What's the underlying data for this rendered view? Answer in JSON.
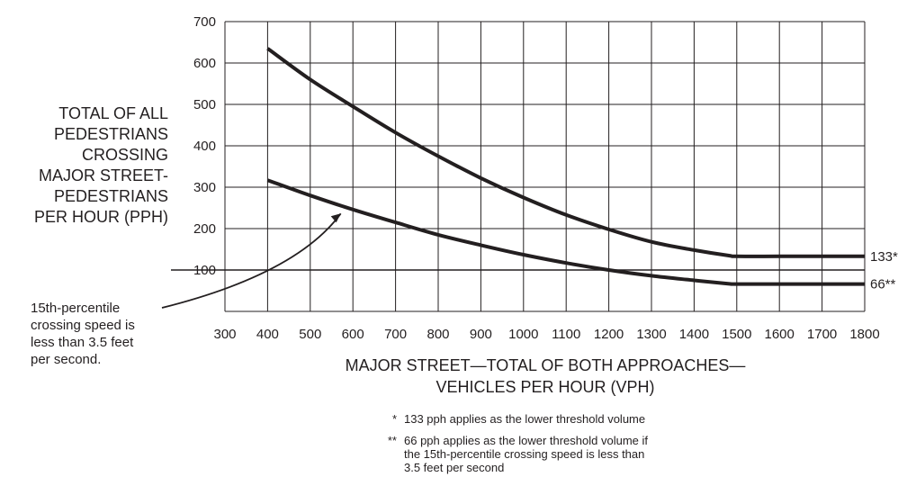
{
  "chart_data": {
    "type": "line",
    "title": "",
    "xlabel": [
      "MAJOR STREET—TOTAL OF BOTH APPROACHES—",
      "VEHICLES PER HOUR (VPH)"
    ],
    "ylabel": [
      "TOTAL OF ALL",
      "PEDESTRIANS",
      "CROSSING",
      "MAJOR STREET-",
      "PEDESTRIANS",
      "PER HOUR (PPH)"
    ],
    "xlim": [
      300,
      1800
    ],
    "ylim": [
      0,
      700
    ],
    "x_ticks": [
      "300",
      "400",
      "500",
      "600",
      "700",
      "800",
      "900",
      "1000",
      "1100",
      "1200",
      "1300",
      "1400",
      "1500",
      "1600",
      "1700",
      "1800"
    ],
    "y_ticks": [
      "100",
      "200",
      "300",
      "400",
      "500",
      "600",
      "700"
    ],
    "x_tick_values": [
      300,
      400,
      500,
      600,
      700,
      800,
      900,
      1000,
      1100,
      1200,
      1300,
      1400,
      1500,
      1600,
      1700,
      1800
    ],
    "y_tick_values": [
      100,
      200,
      300,
      400,
      500,
      600,
      700
    ],
    "grid": true,
    "reference_line": {
      "y": 100
    },
    "series": [
      {
        "x": [
          400,
          500,
          600,
          700,
          800,
          900,
          1000,
          1100,
          1200,
          1300,
          1400,
          1480,
          1500,
          1600,
          1700,
          1800
        ],
        "y": [
          635,
          560,
          495,
          432,
          375,
          322,
          275,
          233,
          198,
          168,
          148,
          135,
          133,
          133,
          133,
          133
        ],
        "end_label": "133*",
        "color": "#231f20"
      },
      {
        "x": [
          400,
          500,
          600,
          700,
          800,
          900,
          1000,
          1100,
          1200,
          1300,
          1400,
          1480,
          1500,
          1600,
          1700,
          1800
        ],
        "y": [
          317,
          280,
          246,
          215,
          185,
          160,
          137,
          117,
          100,
          86,
          75,
          67,
          66,
          66,
          66,
          66
        ],
        "end_label": "66**",
        "color": "#231f20"
      }
    ],
    "annotation": {
      "lines": [
        "15th-percentile",
        "crossing speed is",
        "less than 3.5 feet",
        "per second."
      ],
      "points_to": {
        "x": 580,
        "y": 245
      }
    },
    "footnotes": [
      {
        "marker": "*",
        "lines": [
          "133 pph applies as the lower threshold volume"
        ]
      },
      {
        "marker": "**",
        "lines": [
          "66 pph applies as the lower threshold volume if",
          "the 15th-percentile crossing speed is less than",
          "3.5 feet per second"
        ]
      }
    ]
  }
}
